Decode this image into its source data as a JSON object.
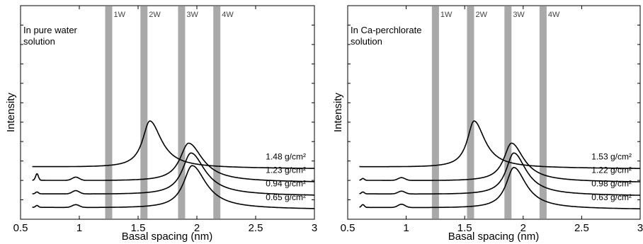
{
  "chart_data": [
    {
      "type": "line",
      "annotation": [
        "In pure water",
        "solution"
      ],
      "xlabel": "Basal spacing (nm)",
      "ylabel": "Intensity",
      "xlim": [
        0.5,
        3
      ],
      "xticks": [
        "0.5",
        "1",
        "1.5",
        "2",
        "2.5",
        "3"
      ],
      "bands": [
        {
          "label": "1W",
          "x": 1.25
        },
        {
          "label": "2W",
          "x": 1.55
        },
        {
          "label": "3W",
          "x": 1.87
        },
        {
          "label": "4W",
          "x": 2.17
        }
      ],
      "series": [
        {
          "name": "1.48 g/cm²",
          "baseline": 0.93,
          "peaks": [
            {
              "x": 1.6,
              "h": 1.0,
              "w": 0.075
            }
          ]
        },
        {
          "name": "1.23 g/cm²",
          "baseline": 0.64,
          "peaks": [
            {
              "x": 1.93,
              "h": 0.82,
              "w": 0.09
            },
            {
              "x": 0.64,
              "h": 0.14,
              "w": 0.012
            },
            {
              "x": 0.97,
              "h": 0.07,
              "w": 0.03
            }
          ]
        },
        {
          "name": "0.94 g/cm²",
          "baseline": 0.35,
          "peaks": [
            {
              "x": 1.95,
              "h": 0.9,
              "w": 0.09
            },
            {
              "x": 0.64,
              "h": 0.04,
              "w": 0.012
            },
            {
              "x": 0.97,
              "h": 0.07,
              "w": 0.03
            }
          ]
        },
        {
          "name": "0.65 g/cm²",
          "baseline": 0.06,
          "peaks": [
            {
              "x": 1.96,
              "h": 0.92,
              "w": 0.09
            },
            {
              "x": 0.64,
              "h": 0.04,
              "w": 0.012
            },
            {
              "x": 0.97,
              "h": 0.06,
              "w": 0.03
            }
          ]
        }
      ]
    },
    {
      "type": "line",
      "annotation": [
        "In Ca-perchlorate",
        "solution"
      ],
      "xlabel": "Basal spacing (nm)",
      "ylabel": "Intensity",
      "xlim": [
        0.5,
        3
      ],
      "xticks": [
        "0.5",
        "1",
        "1.5",
        "2",
        "2.5",
        "3"
      ],
      "bands": [
        {
          "label": "1W",
          "x": 1.25
        },
        {
          "label": "2W",
          "x": 1.55
        },
        {
          "label": "3W",
          "x": 1.87
        },
        {
          "label": "4W",
          "x": 2.17
        }
      ],
      "series": [
        {
          "name": "1.53 g/cm²",
          "baseline": 0.93,
          "peaks": [
            {
              "x": 1.58,
              "h": 1.0,
              "w": 0.07
            }
          ]
        },
        {
          "name": "1.22 g/cm²",
          "baseline": 0.64,
          "peaks": [
            {
              "x": 1.9,
              "h": 0.82,
              "w": 0.08
            },
            {
              "x": 0.63,
              "h": 0.04,
              "w": 0.012
            },
            {
              "x": 0.96,
              "h": 0.06,
              "w": 0.03
            }
          ]
        },
        {
          "name": "0.98 g/cm²",
          "baseline": 0.35,
          "peaks": [
            {
              "x": 1.92,
              "h": 0.9,
              "w": 0.08
            },
            {
              "x": 0.63,
              "h": 0.04,
              "w": 0.012
            },
            {
              "x": 0.96,
              "h": 0.06,
              "w": 0.03
            }
          ]
        },
        {
          "name": "0.63 g/cm²",
          "baseline": 0.06,
          "peaks": [
            {
              "x": 1.92,
              "h": 0.88,
              "w": 0.08
            },
            {
              "x": 0.63,
              "h": 0.06,
              "w": 0.012
            },
            {
              "x": 0.96,
              "h": 0.07,
              "w": 0.03
            }
          ]
        }
      ]
    }
  ]
}
